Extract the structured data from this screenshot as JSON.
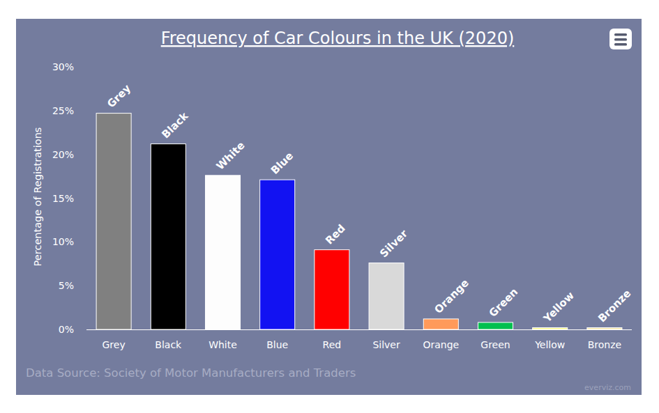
{
  "chart_data": {
    "type": "bar",
    "title": "Frequency of Car Colours in the UK (2020)",
    "y_label": "Percentage of Registrations",
    "categories": [
      "Grey",
      "Black",
      "White",
      "Blue",
      "Red",
      "Silver",
      "Orange",
      "Green",
      "Yellow",
      "Bronze"
    ],
    "values": [
      24.7,
      21.2,
      17.6,
      17.1,
      9.1,
      7.6,
      1.2,
      0.8,
      0.2,
      0.2
    ],
    "colors": [
      "#808080",
      "#000000",
      "#fdfdfd",
      "#1212f2",
      "#ff0000",
      "#d9d9d9",
      "#ff9a5a",
      "#00c04f",
      "#ffff8a",
      "#f3e6a8"
    ],
    "ylim": [
      0,
      30
    ],
    "yticks": [
      {
        "value": 0,
        "label": "0%"
      },
      {
        "value": 5,
        "label": "5%"
      },
      {
        "value": 10,
        "label": "10%"
      },
      {
        "value": 15,
        "label": "15%"
      },
      {
        "value": 20,
        "label": "20%"
      },
      {
        "value": 25,
        "label": "25%"
      },
      {
        "value": 30,
        "label": "30%"
      }
    ],
    "grid": false,
    "source": "Data Source: Society of Motor Manufacturers and Traders",
    "credit": "everviz.com"
  }
}
